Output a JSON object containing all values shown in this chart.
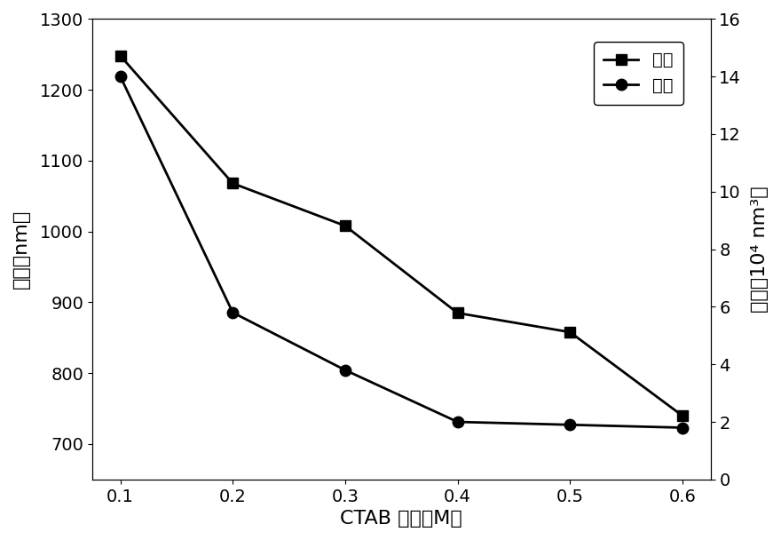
{
  "x": [
    0.1,
    0.2,
    0.3,
    0.4,
    0.5,
    0.6
  ],
  "wavelength": [
    1248,
    1068,
    1008,
    885,
    858,
    740
  ],
  "volume": [
    14.0,
    5.8,
    3.8,
    2.0,
    1.9,
    1.8
  ],
  "xlabel": "CTAB 浓度（M）",
  "ylabel_left": "波长（nm）",
  "ylabel_right": "体积（10⁴ nm³）",
  "legend_wavelength": "波长",
  "legend_volume": "体积",
  "ylim_left": [
    650,
    1300
  ],
  "ylim_right": [
    0,
    16
  ],
  "yticks_left": [
    700,
    800,
    900,
    1000,
    1100,
    1200,
    1300
  ],
  "yticks_right": [
    0,
    2,
    4,
    6,
    8,
    10,
    12,
    14,
    16
  ],
  "xticks": [
    0.1,
    0.2,
    0.3,
    0.4,
    0.5,
    0.6
  ],
  "xtick_labels": [
    "0.1",
    "0.2",
    "0.3",
    "0.4",
    "0.5",
    "0.6"
  ],
  "line_color": "#000000",
  "marker_square": "s",
  "marker_circle": "o",
  "markersize": 9,
  "linewidth": 2.0,
  "xlabel_fontsize": 16,
  "ylabel_fontsize": 16,
  "tick_fontsize": 14,
  "legend_fontsize": 14
}
